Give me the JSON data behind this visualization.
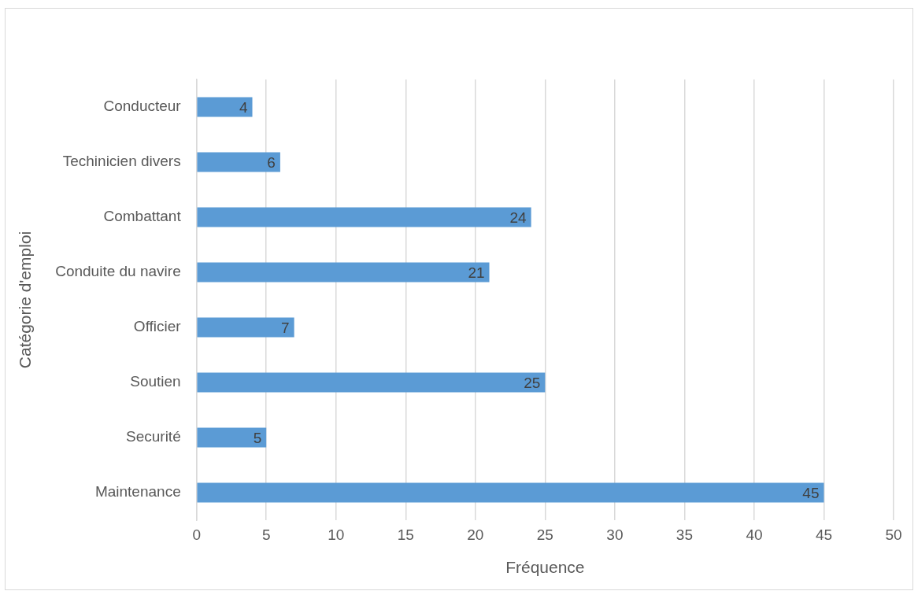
{
  "chart_data": {
    "type": "bar",
    "orientation": "horizontal",
    "categories": [
      "Conducteur",
      "Techinicien divers",
      "Combattant",
      "Conduite du navire",
      "Officier",
      "Soutien",
      "Securité",
      "Maintenance"
    ],
    "values": [
      4,
      6,
      24,
      21,
      7,
      25,
      5,
      45
    ],
    "color": "#5b9bd5",
    "xlabel": "Fréquence",
    "ylabel": "Catégorie d'emploi",
    "xlim": [
      0,
      50
    ],
    "xticks": [
      0,
      5,
      10,
      15,
      20,
      25,
      30,
      35,
      40,
      45,
      50
    ],
    "grid": "x",
    "data_labels": true
  }
}
